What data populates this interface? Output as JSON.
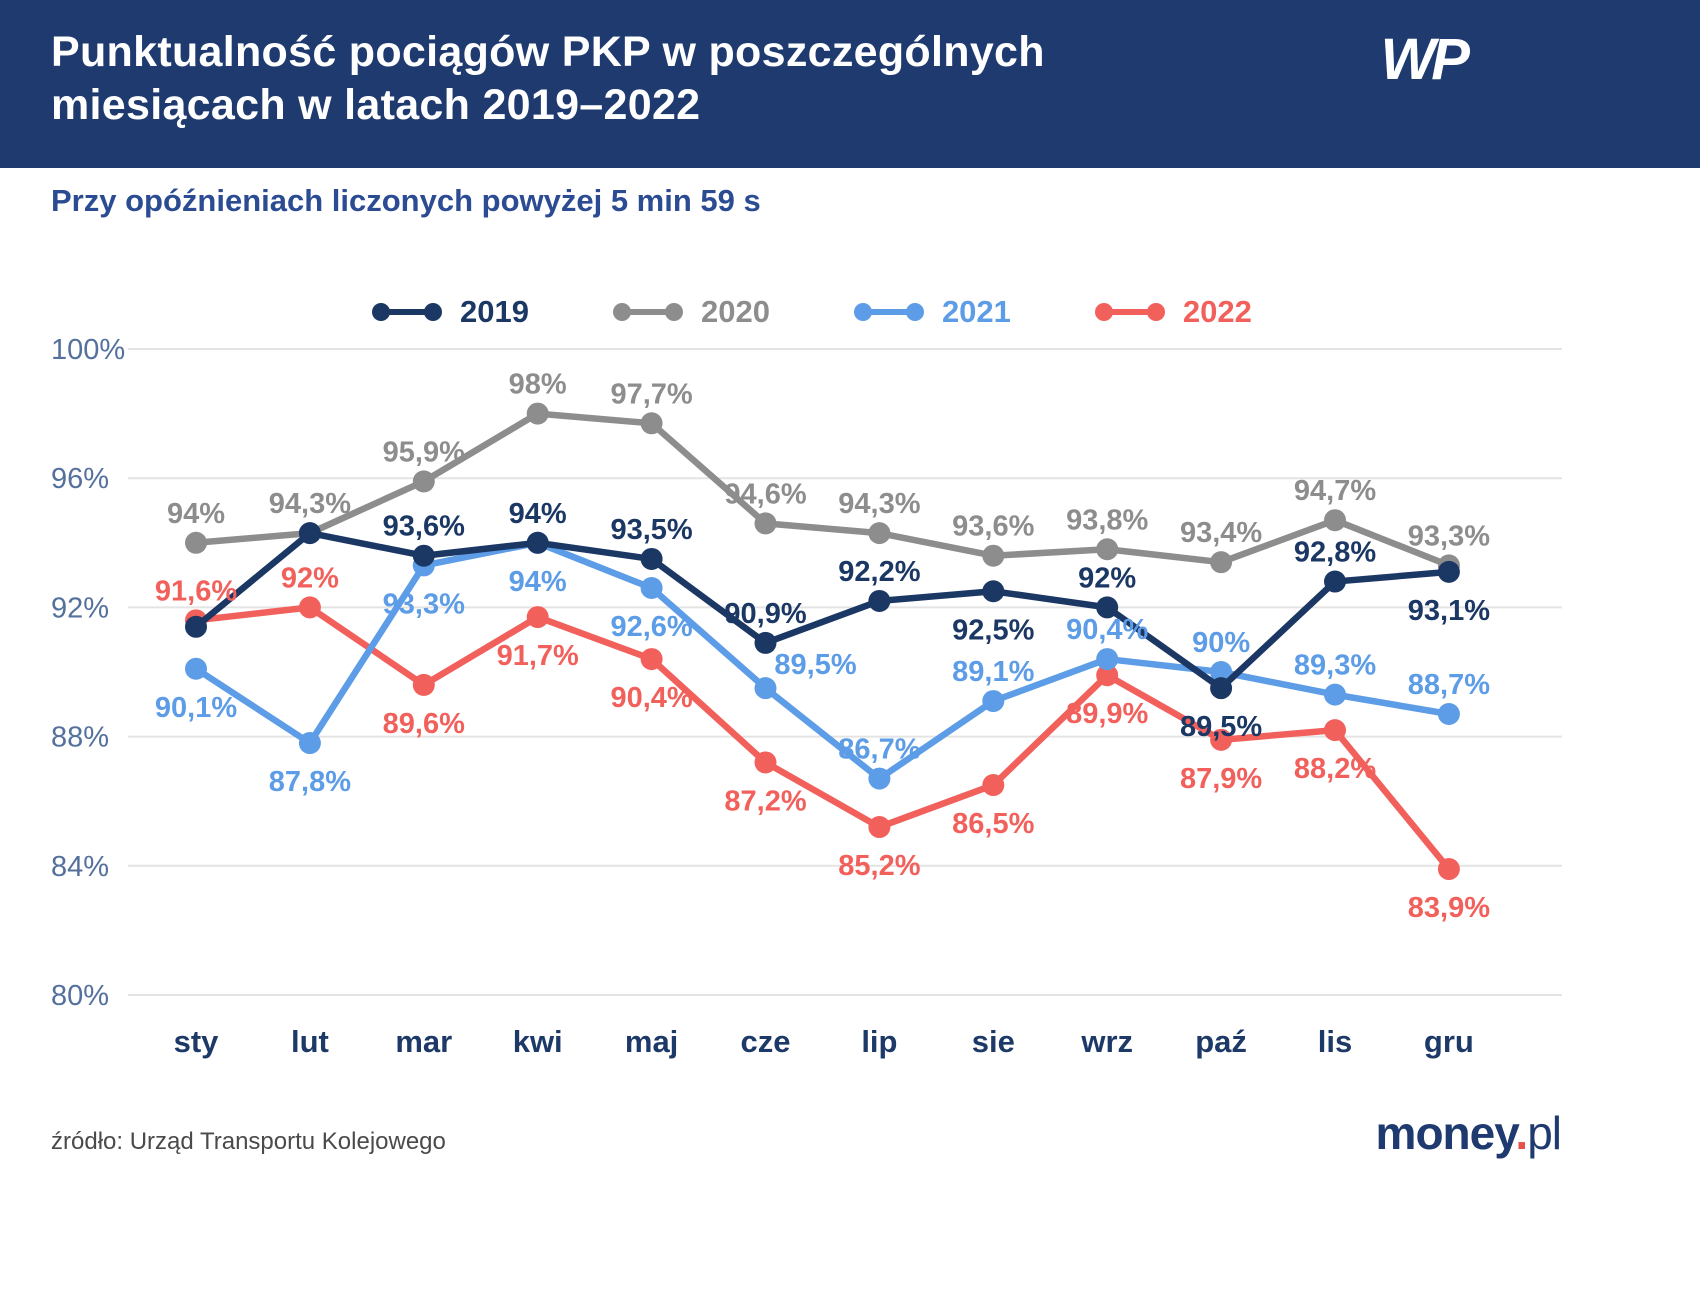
{
  "header": {
    "title_lines": [
      "Punktualność pociągów PKP w poszczególnych",
      "miesiącach w latach 2019–2022"
    ],
    "logo_text": "WP"
  },
  "subtitle": "Przy opóźnieniach liczonych powyżej 5 min 59 s",
  "footer": {
    "source": "źródło: Urząd Transportu Kolejowego",
    "brand_money": "money",
    "brand_dot": ".",
    "brand_pl": "pl"
  },
  "colors": {
    "header_bg": "#1e3a6f",
    "title_text": "#ffffff",
    "subtitle_text": "#2b4c92",
    "axis_label": "#54719d",
    "month_label": "#1d3968",
    "gridline": "#e4e4e4",
    "source_text": "#4a4a4a",
    "brand_navy": "#1e3a6f",
    "brand_red": "#e8504a"
  },
  "chart_data": {
    "type": "line",
    "title": "Punktualność pociągów PKP w poszczególnych miesiącach w latach 2019–2022",
    "subtitle": "Przy opóźnieniach liczonych powyżej 5 min 59 s",
    "categories": [
      "sty",
      "lut",
      "mar",
      "kwi",
      "maj",
      "cze",
      "lip",
      "sie",
      "wrz",
      "paź",
      "lis",
      "gru"
    ],
    "ylim": [
      80,
      100
    ],
    "yticks": [
      {
        "value": 100,
        "label": "100%"
      },
      {
        "value": 96,
        "label": "96%"
      },
      {
        "value": 92,
        "label": "92%"
      },
      {
        "value": 88,
        "label": "88%"
      },
      {
        "value": 84,
        "label": "84%"
      },
      {
        "value": 80,
        "label": "80%"
      }
    ],
    "grid": true,
    "legend_position": "top",
    "series": [
      {
        "name": "2020",
        "color": "#8d8d8d",
        "values": [
          94,
          94.3,
          95.9,
          98,
          97.7,
          94.6,
          94.3,
          93.6,
          93.8,
          93.4,
          94.7,
          93.3
        ],
        "labels": [
          "94%",
          "94,3%",
          "95,9%",
          "98%",
          "97,7%",
          "94,6%",
          "94,3%",
          "93,6%",
          "93,8%",
          "93,4%",
          "94,7%",
          "93,3%"
        ],
        "label_pos": [
          "above",
          "above",
          "above",
          "above",
          "above",
          "above",
          "above",
          "above",
          "above",
          "above",
          "above",
          "above"
        ]
      },
      {
        "name": "2022",
        "color": "#f2605c",
        "values": [
          91.6,
          92,
          89.6,
          91.7,
          90.4,
          87.2,
          85.2,
          86.5,
          89.9,
          87.9,
          88.2,
          83.9
        ],
        "labels": [
          "91,6%",
          "92%",
          "89,6%",
          "91,7%",
          "90,4%",
          "87,2%",
          "85,2%",
          "86,5%",
          "89,9%",
          "87,9%",
          "88,2%",
          "83,9%"
        ],
        "label_pos": [
          "above",
          "above",
          "below",
          "below",
          "below",
          "below",
          "below",
          "below",
          "below",
          "below",
          "below",
          "below"
        ]
      },
      {
        "name": "2021",
        "color": "#5d9ce6",
        "values": [
          90.1,
          87.8,
          93.3,
          94,
          92.6,
          89.5,
          86.7,
          89.1,
          90.4,
          90,
          89.3,
          88.7
        ],
        "labels": [
          "90,1%",
          "87,8%",
          "93,3%",
          "94%",
          "92,6%",
          "89,5%",
          "86,7%",
          "89,1%",
          "90,4%",
          "90%",
          "89,3%",
          "88,7%"
        ],
        "label_pos": [
          "below",
          "below",
          "below",
          "below",
          "below",
          "above-right",
          "above",
          "above",
          "above",
          "above",
          "above",
          "above"
        ]
      },
      {
        "name": "2019",
        "color": "#1b3764",
        "values": [
          91.4,
          94.3,
          93.6,
          94,
          93.5,
          90.9,
          92.2,
          92.5,
          92,
          89.5,
          92.8,
          93.1
        ],
        "labels": [
          "",
          "",
          "93,6%",
          "94%",
          "93,5%",
          "90,9%",
          "92,2%",
          "92,5%",
          "92%",
          "89,5%",
          "92,8%",
          "93,1%"
        ],
        "label_pos": [
          "above",
          "above",
          "above",
          "above",
          "above",
          "above",
          "above",
          "below",
          "above",
          "below",
          "above",
          "below"
        ]
      }
    ]
  }
}
